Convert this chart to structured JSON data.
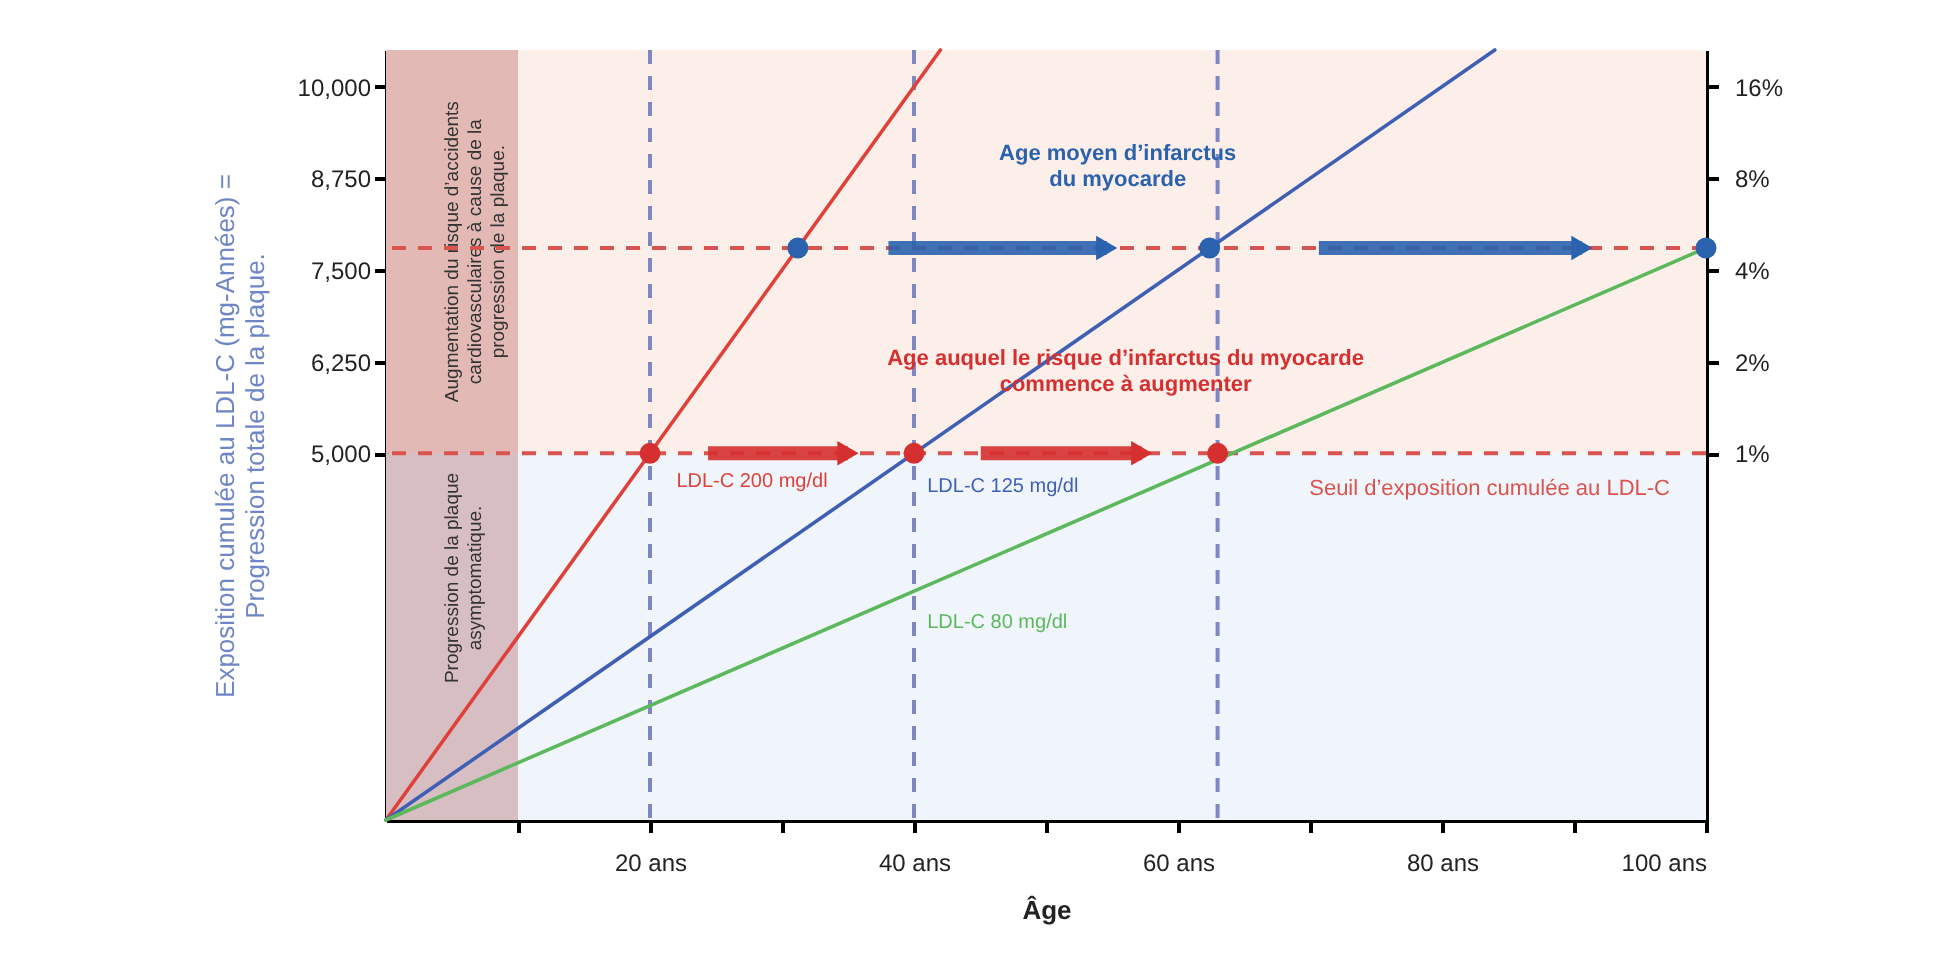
{
  "chart_data": {
    "type": "line",
    "xlabel": "Âge",
    "ylabel": "Exposition cumulée au LDL-C (mg-Années) =\nProgression totale de la plaque.",
    "xlim": [
      0,
      100
    ],
    "xticks": [
      {
        "value": 10,
        "label": null
      },
      {
        "value": 20,
        "label": "20 ans"
      },
      {
        "value": 30,
        "label": null
      },
      {
        "value": 40,
        "label": "40 ans"
      },
      {
        "value": 50,
        "label": null
      },
      {
        "value": 60,
        "label": "60 ans"
      },
      {
        "value": 70,
        "label": null
      },
      {
        "value": 80,
        "label": "80 ans"
      },
      {
        "value": 90,
        "label": null
      },
      {
        "value": 100,
        "label": "100 ans"
      }
    ],
    "ylim": [
      0,
      10500
    ],
    "yticks": [
      {
        "value": 5000,
        "label": "5,000"
      },
      {
        "value": 6250,
        "label": "6,250"
      },
      {
        "value": 7500,
        "label": "7,500"
      },
      {
        "value": 8750,
        "label": "8,750"
      },
      {
        "value": 10000,
        "label": "10,000"
      }
    ],
    "y2lim": [
      0.0625,
      21.1
    ],
    "y2ticks": [
      {
        "value": 1,
        "label": "1%"
      },
      {
        "value": 2,
        "label": "2%"
      },
      {
        "value": 4,
        "label": "4%"
      },
      {
        "value": 8,
        "label": "8%"
      },
      {
        "value": 16,
        "label": "16%"
      }
    ],
    "log": "y2",
    "series": [
      {
        "name": "LDL-C  200 mg/dl",
        "color": "#e0403a",
        "x": [
          0,
          42
        ],
        "values": [
          0,
          10500
        ]
      },
      {
        "name": "LDL-C  125 mg/dl",
        "color": "#3f5fb5",
        "x": [
          0,
          84
        ],
        "values": [
          0,
          10500
        ]
      },
      {
        "name": "LDL-C  80 mg/dl",
        "color": "#5cb85c",
        "x": [
          0,
          100
        ],
        "values": [
          0,
          7800
        ]
      },
      {
        "type": "scatter",
        "marker": "circle",
        "color": "#d62f2f",
        "x": [
          20,
          40,
          63
        ],
        "values": [
          5000,
          5000,
          5000
        ]
      },
      {
        "type": "scatter",
        "marker": "circle",
        "color": "#2a62ad",
        "x": [
          31.2,
          62.4,
          100
        ],
        "values": [
          7800,
          7800,
          7800
        ]
      }
    ],
    "ref_lines": [
      {
        "axis": "x",
        "value": 20,
        "color": "#7d87c2",
        "line_style": "dashed"
      },
      {
        "axis": "x",
        "value": 40,
        "color": "#7d87c2",
        "line_style": "dashed"
      },
      {
        "axis": "x",
        "value": 63,
        "color": "#7d87c2",
        "line_style": "dashed"
      },
      {
        "axis": "y",
        "value": 5000,
        "label": "Seuil d’exposition cumulée au LDL-C",
        "color": "#d9534f",
        "line_style": "dashed"
      },
      {
        "axis": "y",
        "value": 7800,
        "color": "#d9534f",
        "line_style": "dashed"
      }
    ],
    "bands": [
      {
        "axis": "y",
        "from": 5000,
        "to": 10500,
        "label": "Augmentation du risque d’accidents\ncardiovasculaires  à cause de la\nprogression de la plaque.",
        "color": "#fcefe9"
      },
      {
        "axis": "y",
        "from": 0,
        "to": 5000,
        "label": "Progression de la plaque\nasymptomatique.",
        "color": "#eff5fa"
      },
      {
        "axis": "x",
        "from": 0,
        "to": 10,
        "color": "#e6c6c6"
      }
    ],
    "annotations": [
      {
        "text": "Age moyen d’infarctus\ndu myocarde",
        "x": 62.4,
        "y": 7800
      },
      {
        "text": "Age auquel le risque d’infarctus du myocarde\ncommence à augmenter",
        "x": 63,
        "y": 5000
      }
    ]
  }
}
